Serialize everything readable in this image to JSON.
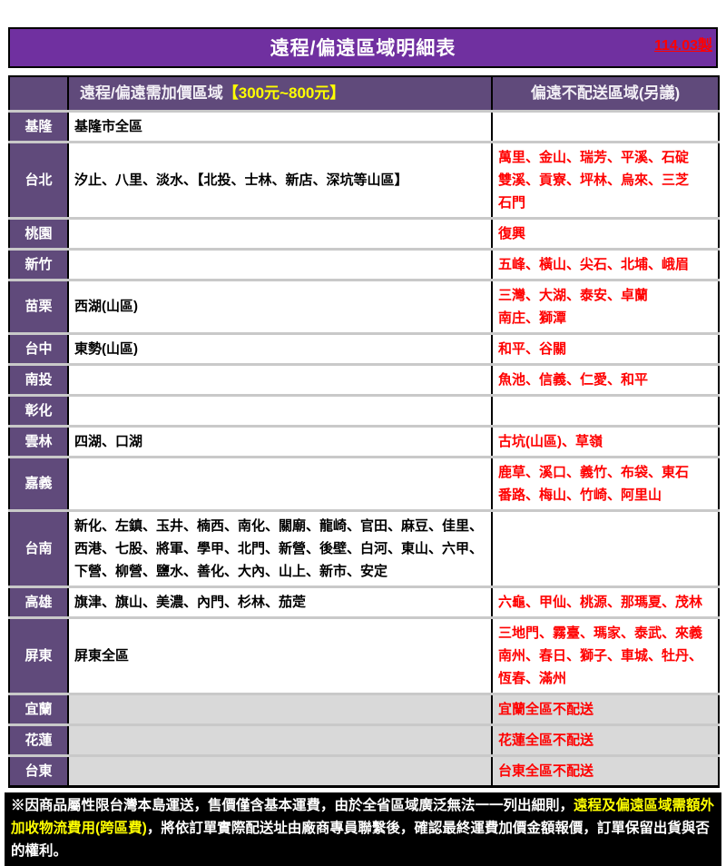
{
  "colors": {
    "banner_purple": "#7030a0",
    "header_purple": "#604a7b",
    "alert_red": "#ff0000",
    "highlight_yellow": "#ffff00",
    "no_service_gray": "#d9d9d9",
    "footer_black": "#000000"
  },
  "edition": "114.03製",
  "title": "遠程/偏遠區域明細表",
  "table": {
    "col2_header_white": "遠程/偏遠需加價區域",
    "col2_header_yellow": "【300元~800元】",
    "col3_header": "偏遠不配送區域(另議)",
    "rows": [
      {
        "region": "基隆",
        "surcharge": "基隆市全區",
        "no_delivery": "",
        "gray": false
      },
      {
        "region": "台北",
        "surcharge": "汐止、八里、淡水、【北投、士林、新店、深坑等山區】",
        "no_delivery": "萬里、金山、瑞芳、平溪、石碇\n雙溪、貢寮、坪林、烏來、三芝\n石門",
        "gray": false
      },
      {
        "region": "桃園",
        "surcharge": "",
        "no_delivery": "復興",
        "gray": false
      },
      {
        "region": "新竹",
        "surcharge": "",
        "no_delivery": "五峰、橫山、尖石、北埔、峨眉",
        "gray": false
      },
      {
        "region": "苗栗",
        "surcharge": "西湖(山區)",
        "no_delivery": "三灣、大湖、泰安、卓蘭\n南庄、獅潭",
        "gray": false
      },
      {
        "region": "台中",
        "surcharge": "東勢(山區)",
        "no_delivery": "和平、谷關",
        "gray": false
      },
      {
        "region": "南投",
        "surcharge": "",
        "no_delivery": "魚池、信義、仁愛、和平",
        "gray": false
      },
      {
        "region": "彰化",
        "surcharge": "",
        "no_delivery": "",
        "gray": false
      },
      {
        "region": "雲林",
        "surcharge": "四湖、口湖",
        "no_delivery": "古坑(山區)、草嶺",
        "gray": false
      },
      {
        "region": "嘉義",
        "surcharge": "",
        "no_delivery": "鹿草、溪口、義竹、布袋、東石\n番路、梅山、竹崎、阿里山",
        "gray": false
      },
      {
        "region": "台南",
        "surcharge": "新化、左鎮、玉井、楠西、南化、關廟、龍崎、官田、麻豆、佳里、西港、七股、將軍、學甲、北門、新營、後壁、白河、東山、六甲、下營、柳營、鹽水、善化、大內、山上、新市、安定",
        "no_delivery": "",
        "gray": false
      },
      {
        "region": "高雄",
        "surcharge": "旗津、旗山、美濃、內門、杉林、茄萣",
        "no_delivery": "六龜、甲仙、桃源、那瑪夏、茂林",
        "gray": false
      },
      {
        "region": "屏東",
        "surcharge": "屏東全區",
        "no_delivery": "三地門、霧臺、瑪家、泰武、來義\n南州、春日、獅子、車城、牡丹、\n恆春、滿州",
        "gray": false
      },
      {
        "region": "宜蘭",
        "surcharge": "",
        "no_delivery": "宜蘭全區不配送",
        "gray": true
      },
      {
        "region": "花蓮",
        "surcharge": "",
        "no_delivery": "花蓮全區不配送",
        "gray": true
      },
      {
        "region": "台東",
        "surcharge": "",
        "no_delivery": "台東全區不配送",
        "gray": true
      }
    ]
  },
  "footer": {
    "pre": "※因商品屬性限台灣本島運送，售價僅含基本運費，由於全省區域廣泛無法一一列出細則，",
    "highlight": "遠程及偏遠區域需額外加收物流費用(跨區費)",
    "post": "，將依訂單實際配送址由廠商專員聯繫後，確認最終運費加價金額報價，訂單保留出貨與否的權利。"
  }
}
